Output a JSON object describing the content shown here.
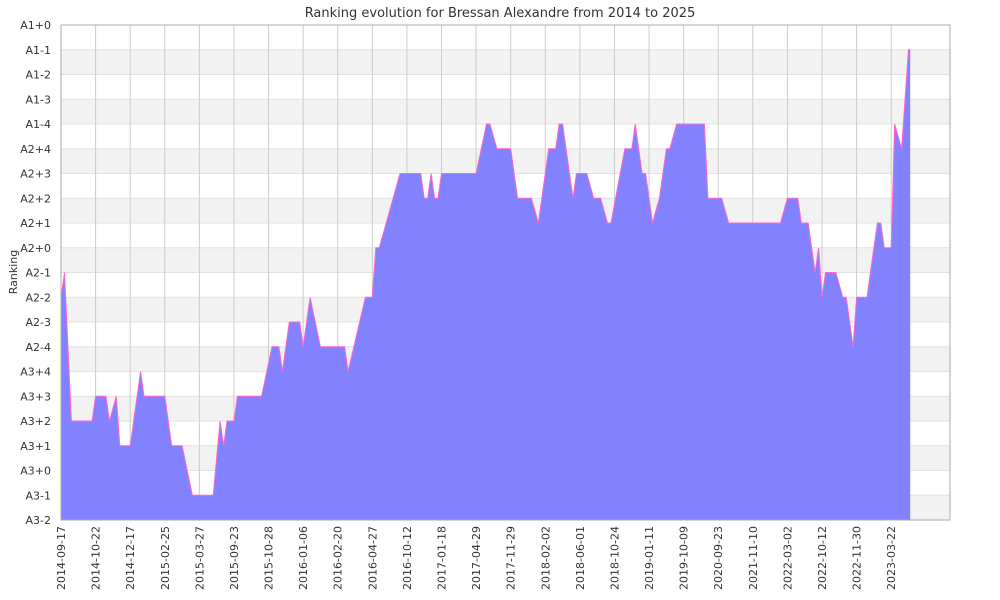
{
  "chart_data": {
    "type": "area",
    "title": "Ranking evolution for Bressan Alexandre from 2014 to 2025",
    "ylabel": "Ranking",
    "xlabel": "",
    "y_categories": [
      "A3-2",
      "A3-1",
      "A3+0",
      "A3+1",
      "A3+2",
      "A3+3",
      "A3+4",
      "A2-4",
      "A2-3",
      "A2-2",
      "A2-1",
      "A2+0",
      "A2+1",
      "A2+2",
      "A2+3",
      "A2+4",
      "A1-4",
      "A1-3",
      "A1-2",
      "A1-1",
      "A1+0"
    ],
    "x_tick_labels": [
      "2014-09-17",
      "2014-10-22",
      "2014-12-17",
      "2015-02-25",
      "2015-03-27",
      "2015-09-23",
      "2015-10-28",
      "2016-01-06",
      "2016-02-20",
      "2016-04-27",
      "2016-10-12",
      "2017-01-18",
      "2017-04-29",
      "2017-11-29",
      "2018-02-02",
      "2018-06-01",
      "2018-10-24",
      "2019-01-11",
      "2019-10-09",
      "2020-09-23",
      "2021-11-10",
      "2022-03-02",
      "2022-10-12",
      "2022-11-30",
      "2023-03-22"
    ],
    "series": [
      {
        "values": [
          [
            0,
            9
          ],
          [
            0.1,
            10
          ],
          [
            0.3,
            4
          ],
          [
            0.9,
            4
          ],
          [
            1.0,
            5
          ],
          [
            1.3,
            5
          ],
          [
            1.4,
            4
          ],
          [
            1.6,
            5
          ],
          [
            1.7,
            3
          ],
          [
            2.0,
            3
          ],
          [
            2.2,
            5
          ],
          [
            2.3,
            6
          ],
          [
            2.4,
            5
          ],
          [
            3.0,
            5
          ],
          [
            3.2,
            3
          ],
          [
            3.3,
            3
          ],
          [
            3.5,
            3
          ],
          [
            3.8,
            1
          ],
          [
            4.4,
            1
          ],
          [
            4.6,
            4
          ],
          [
            4.7,
            3
          ],
          [
            4.8,
            4
          ],
          [
            5.0,
            4
          ],
          [
            5.1,
            5
          ],
          [
            5.8,
            5
          ],
          [
            6.1,
            7
          ],
          [
            6.3,
            7
          ],
          [
            6.4,
            6
          ],
          [
            6.6,
            8
          ],
          [
            6.9,
            8
          ],
          [
            7.0,
            7
          ],
          [
            7.2,
            9
          ],
          [
            7.5,
            7
          ],
          [
            8.2,
            7
          ],
          [
            8.3,
            6
          ],
          [
            8.8,
            9
          ],
          [
            9.0,
            9
          ],
          [
            9.1,
            11
          ],
          [
            9.2,
            11
          ],
          [
            9.4,
            12
          ],
          [
            9.6,
            13
          ],
          [
            9.8,
            14
          ],
          [
            10.4,
            14
          ],
          [
            10.5,
            13
          ],
          [
            10.6,
            13
          ],
          [
            10.7,
            14
          ],
          [
            10.8,
            13
          ],
          [
            10.9,
            13
          ],
          [
            11.0,
            14
          ],
          [
            12.0,
            14
          ],
          [
            12.3,
            16
          ],
          [
            12.4,
            16
          ],
          [
            12.6,
            15
          ],
          [
            13.0,
            15
          ],
          [
            13.2,
            13
          ],
          [
            13.6,
            13
          ],
          [
            13.8,
            12
          ],
          [
            13.9,
            13
          ],
          [
            14.1,
            15
          ],
          [
            14.3,
            15
          ],
          [
            14.4,
            16
          ],
          [
            14.5,
            16
          ],
          [
            14.7,
            14
          ],
          [
            14.8,
            13
          ],
          [
            14.9,
            14
          ],
          [
            15.2,
            14
          ],
          [
            15.4,
            13
          ],
          [
            15.6,
            13
          ],
          [
            15.8,
            12
          ],
          [
            15.9,
            12
          ],
          [
            16.3,
            15
          ],
          [
            16.5,
            15
          ],
          [
            16.6,
            16
          ],
          [
            16.8,
            14
          ],
          [
            16.9,
            14
          ],
          [
            17.1,
            12
          ],
          [
            17.3,
            13
          ],
          [
            17.5,
            15
          ],
          [
            17.6,
            15
          ],
          [
            17.8,
            16
          ],
          [
            17.9,
            16
          ],
          [
            18.5,
            16
          ],
          [
            18.6,
            16
          ],
          [
            18.7,
            13
          ],
          [
            19.1,
            13
          ],
          [
            19.3,
            12
          ],
          [
            20.5,
            12
          ],
          [
            20.8,
            12
          ],
          [
            21.0,
            13
          ],
          [
            21.3,
            13
          ],
          [
            21.4,
            12
          ],
          [
            21.6,
            12
          ],
          [
            21.8,
            10
          ],
          [
            21.9,
            11
          ],
          [
            22.0,
            9
          ],
          [
            22.1,
            10
          ],
          [
            22.4,
            10
          ],
          [
            22.6,
            9
          ],
          [
            22.7,
            9
          ],
          [
            22.9,
            7
          ],
          [
            23.0,
            9
          ],
          [
            23.3,
            9
          ],
          [
            23.4,
            10
          ],
          [
            23.6,
            12
          ],
          [
            23.7,
            12
          ],
          [
            23.8,
            11
          ],
          [
            24.0,
            11
          ],
          [
            24.1,
            16
          ],
          [
            24.3,
            15
          ],
          [
            24.5,
            19
          ],
          [
            24.55,
            19
          ]
        ]
      }
    ],
    "x_range": [
      0,
      25.7
    ],
    "ylim": [
      0,
      20
    ],
    "grid": true,
    "colors": {
      "fill": "#7b7bff",
      "stroke": "#ff66cc",
      "band": "#f2f2f2",
      "grid": "#cccccc",
      "axis": "#aaaaaa"
    }
  }
}
